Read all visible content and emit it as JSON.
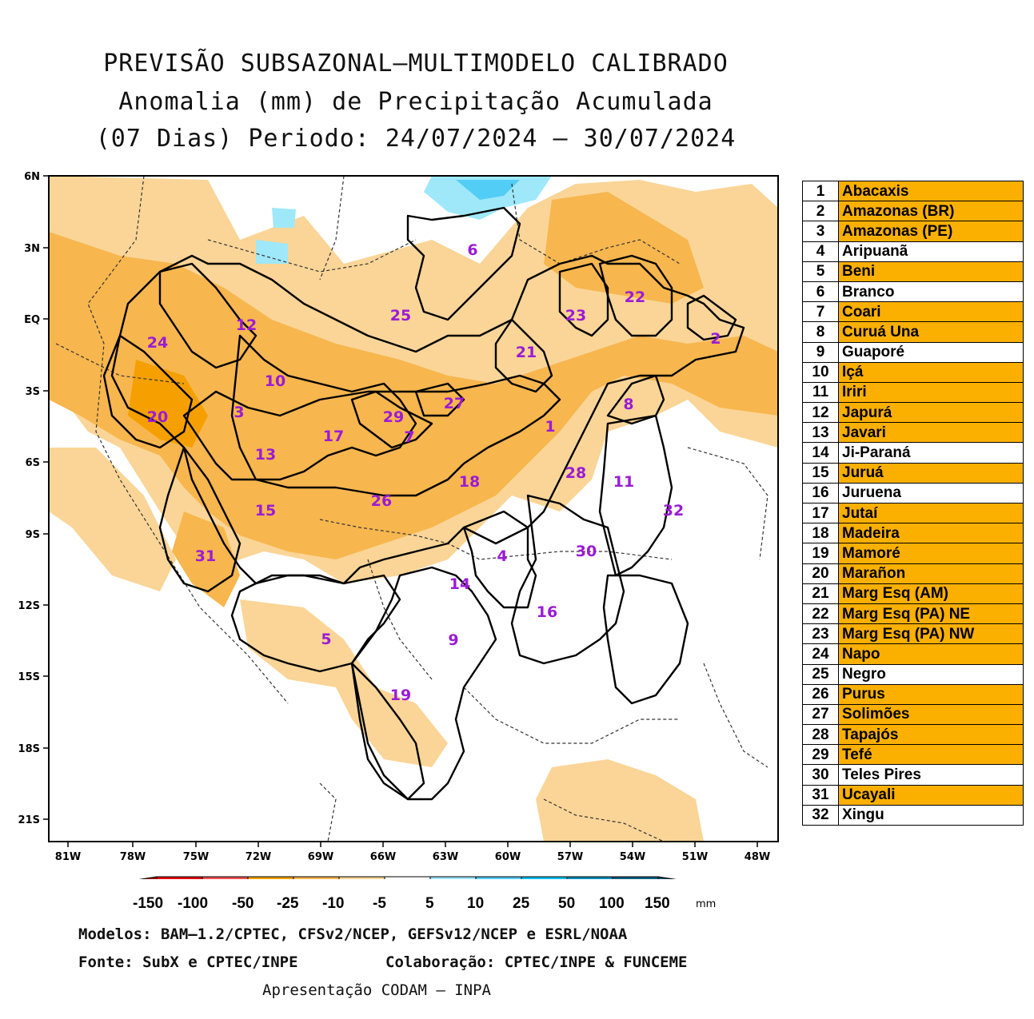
{
  "title": {
    "line1": "PREVISÃO SUBSAZONAL–MULTIMODELO CALIBRADO",
    "line2": "Anomalia (mm) de Precipitação Acumulada",
    "line3": "(07 Dias) Periodo: 24/07/2024 – 30/07/2024"
  },
  "axes": {
    "lon_ticks": [
      "81W",
      "78W",
      "75W",
      "72W",
      "69W",
      "66W",
      "63W",
      "60W",
      "57W",
      "54W",
      "51W",
      "48W"
    ],
    "lat_ticks": [
      "6N",
      "3N",
      "EQ",
      "3S",
      "6S",
      "9S",
      "12S",
      "15S",
      "18S",
      "21S"
    ]
  },
  "basin_labels": [
    "1",
    "2",
    "3",
    "4",
    "5",
    "6",
    "7",
    "8",
    "9",
    "10",
    "11",
    "12",
    "13",
    "14",
    "15",
    "16",
    "17",
    "18",
    "19",
    "20",
    "21",
    "22",
    "23",
    "24",
    "25",
    "26",
    "27",
    "28",
    "29",
    "30",
    "31",
    "32"
  ],
  "legend": [
    {
      "num": "1",
      "name": "Abacaxis",
      "highlight": true
    },
    {
      "num": "2",
      "name": "Amazonas (BR)",
      "highlight": true
    },
    {
      "num": "3",
      "name": "Amazonas (PE)",
      "highlight": true
    },
    {
      "num": "4",
      "name": "Aripuanã",
      "highlight": false
    },
    {
      "num": "5",
      "name": "Beni",
      "highlight": true
    },
    {
      "num": "6",
      "name": "Branco",
      "highlight": false
    },
    {
      "num": "7",
      "name": "Coari",
      "highlight": true
    },
    {
      "num": "8",
      "name": "Curuá Una",
      "highlight": true
    },
    {
      "num": "9",
      "name": "Guaporé",
      "highlight": false
    },
    {
      "num": "10",
      "name": "Içá",
      "highlight": true
    },
    {
      "num": "11",
      "name": "Iriri",
      "highlight": true
    },
    {
      "num": "12",
      "name": "Japurá",
      "highlight": true
    },
    {
      "num": "13",
      "name": "Javari",
      "highlight": true
    },
    {
      "num": "14",
      "name": "Ji-Paraná",
      "highlight": false
    },
    {
      "num": "15",
      "name": "Juruá",
      "highlight": true
    },
    {
      "num": "16",
      "name": "Juruena",
      "highlight": false
    },
    {
      "num": "17",
      "name": "Jutaí",
      "highlight": true
    },
    {
      "num": "18",
      "name": "Madeira",
      "highlight": true
    },
    {
      "num": "19",
      "name": "Mamoré",
      "highlight": true
    },
    {
      "num": "20",
      "name": "Marañon",
      "highlight": true
    },
    {
      "num": "21",
      "name": "Marg Esq (AM)",
      "highlight": true
    },
    {
      "num": "22",
      "name": "Marg Esq (PA) NE",
      "highlight": true
    },
    {
      "num": "23",
      "name": "Marg Esq (PA) NW",
      "highlight": true
    },
    {
      "num": "24",
      "name": "Napo",
      "highlight": true
    },
    {
      "num": "25",
      "name": "Negro",
      "highlight": false
    },
    {
      "num": "26",
      "name": "Purus",
      "highlight": true
    },
    {
      "num": "27",
      "name": "Solimões",
      "highlight": true
    },
    {
      "num": "28",
      "name": "Tapajós",
      "highlight": true
    },
    {
      "num": "29",
      "name": "Tefé",
      "highlight": true
    },
    {
      "num": "30",
      "name": "Teles Pires",
      "highlight": false
    },
    {
      "num": "31",
      "name": "Ucayali",
      "highlight": true
    },
    {
      "num": "32",
      "name": "Xingu",
      "highlight": false
    }
  ],
  "colorbar": {
    "labels": [
      "-150",
      "-100",
      "-50",
      "-25",
      "-10",
      "-5",
      "5",
      "10",
      "25",
      "50",
      "100",
      "150"
    ],
    "unit": "mm",
    "colors": [
      "#a50000",
      "#e8090a",
      "#f55050",
      "#f5a000",
      "#f7b64e",
      "#fad597",
      "#ffffff",
      "#9ee8fa",
      "#52cdf5",
      "#00bfee",
      "#0090b8",
      "#006080",
      "#004c6a"
    ]
  },
  "colors": {
    "highlight": "#fbb000",
    "anomaly_light": "#fad597",
    "anomaly_mid": "#f7b64e",
    "anomaly_strong": "#f5a000",
    "wet_light": "#9ee8fa",
    "wet_mid": "#52cdf5",
    "label": "#9b1bd6"
  },
  "footer": {
    "models": "Modelos: BAM–1.2/CPTEC, CFSv2/NCEP, GEFSv12/NCEP e ESRL/NOAA",
    "source": "Fonte: SubX e CPTEC/INPE",
    "collab": "Colaboração: CPTEC/INPE & FUNCEME",
    "presentation": "Apresentação CODAM – INPA"
  }
}
